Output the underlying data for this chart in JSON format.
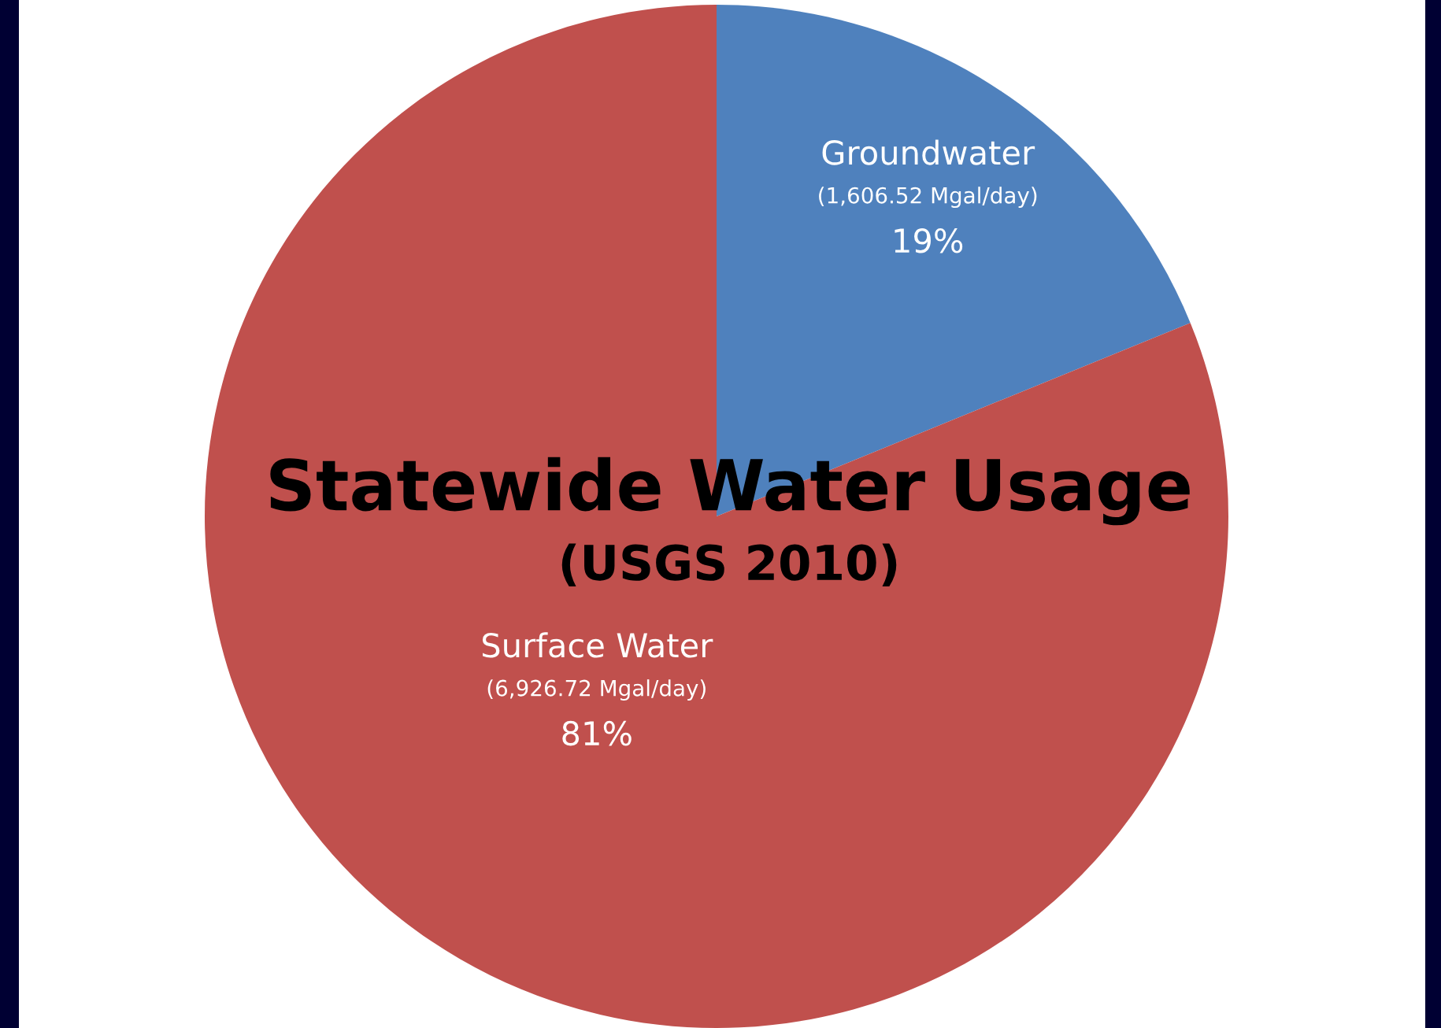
{
  "chart_data": {
    "type": "pie",
    "title": "Statewide Water Usage",
    "subtitle": "(USGS 2010)",
    "categories": [
      "Groundwater",
      "Surface Water"
    ],
    "values": [
      1606.52,
      6926.72
    ],
    "value_labels": [
      "(1,606.52 Mgal/day)\n19%",
      "(6,926.72 Mgal/day)\n81%"
    ],
    "colors": [
      "#4f81bd",
      "#c0504d"
    ]
  }
}
